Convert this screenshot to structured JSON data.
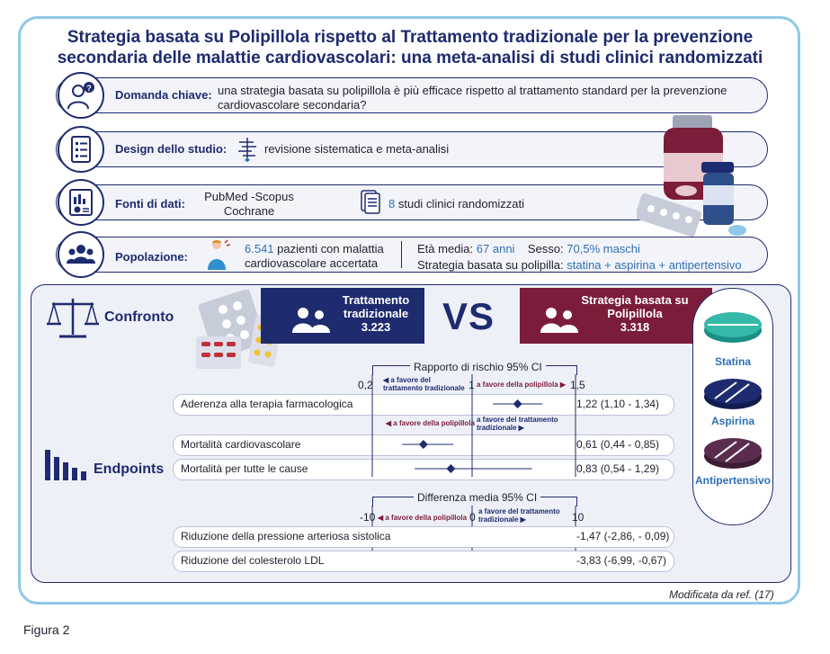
{
  "title_line1": "Strategia basata su Polipillola rispetto al Trattamento tradizionale per la prevenzione",
  "title_line2": "secondaria delle malattie cardiovascolari: una meta-analisi di studi clinici randomizzati",
  "question": {
    "label": "Domanda chiave:",
    "text1": "una strategia basata su polipillola è più efficace rispetto al trattamento standard per la prevenzione",
    "text2": "cardiovascolare secondaria?"
  },
  "design": {
    "label": "Design dello studio:",
    "text": "revisione sistematica e meta-analisi"
  },
  "sources": {
    "label": "Fonti di dati:",
    "db1": "PubMed -Scopus",
    "db2": "Cochrane",
    "count": "8",
    "text": "studi clinici randomizzati"
  },
  "population": {
    "label": "Popolazione:",
    "patients": "6.541",
    "text1": "pazienti con malattia",
    "text2": "cardiovascolare accertata",
    "age_label": "Età media:",
    "age": "67 anni",
    "sex_label": "Sesso:",
    "sex": "70,5% maschi",
    "strategy_label": "Strategia basata su polipilla:",
    "strategy": "statina + aspirina + antipertensivo"
  },
  "compare": {
    "label": "Confronto",
    "left_l1": "Trattamento",
    "left_l2": "tradizionale",
    "left_n": "3.223",
    "vs": "VS",
    "right_l1": "Strategia basata su",
    "right_l2": "Polipillola",
    "right_n": "3.318"
  },
  "pills": {
    "statina": "Statina",
    "aspirina": "Aspirina",
    "antiper": "Antipertensivo"
  },
  "endpoints_label": "Endpoints",
  "hr": {
    "title": "Rapporto di rischio 95% CI",
    "ticks": [
      "0,2",
      "1",
      "1,5"
    ],
    "fav_trad": "a favore del trattamento tradizionale",
    "fav_poly": "a favore della polipillola",
    "rows": [
      {
        "label": "Aderenza alla terapia farmacologica",
        "value": "1,22 (1,10 - 1,34)",
        "est": 1.22,
        "lo": 1.1,
        "hi": 1.34
      },
      {
        "label": "Mortalità cardiovascolare",
        "value": "0,61 (0,44 - 0,85)",
        "est": 0.61,
        "lo": 0.44,
        "hi": 0.85
      },
      {
        "label": "Mortalità per tutte le cause",
        "value": "0,83 (0,54 - 1,29)",
        "est": 0.83,
        "lo": 0.54,
        "hi": 1.29
      }
    ]
  },
  "md": {
    "title": "Differenza media 95% CI",
    "ticks": [
      "-10",
      "0",
      "10"
    ],
    "fav_poly": "a favore della polipillola",
    "fav_trad": "a favore del trattamento tradizionale",
    "rows": [
      {
        "label": "Riduzione della pressione arteriosa sistolica",
        "value": "-1,47 (-2,86, - 0,09)",
        "est": -1.47,
        "lo": -2.86,
        "hi": -0.09
      },
      {
        "label": "Riduzione del colesterolo LDL",
        "value": "-3,83 (-6,99, -0,67)",
        "est": -3.83,
        "lo": -6.99,
        "hi": -0.67
      }
    ]
  },
  "footer": "Modificata da ref. (17)",
  "figure": "Figura 2"
}
